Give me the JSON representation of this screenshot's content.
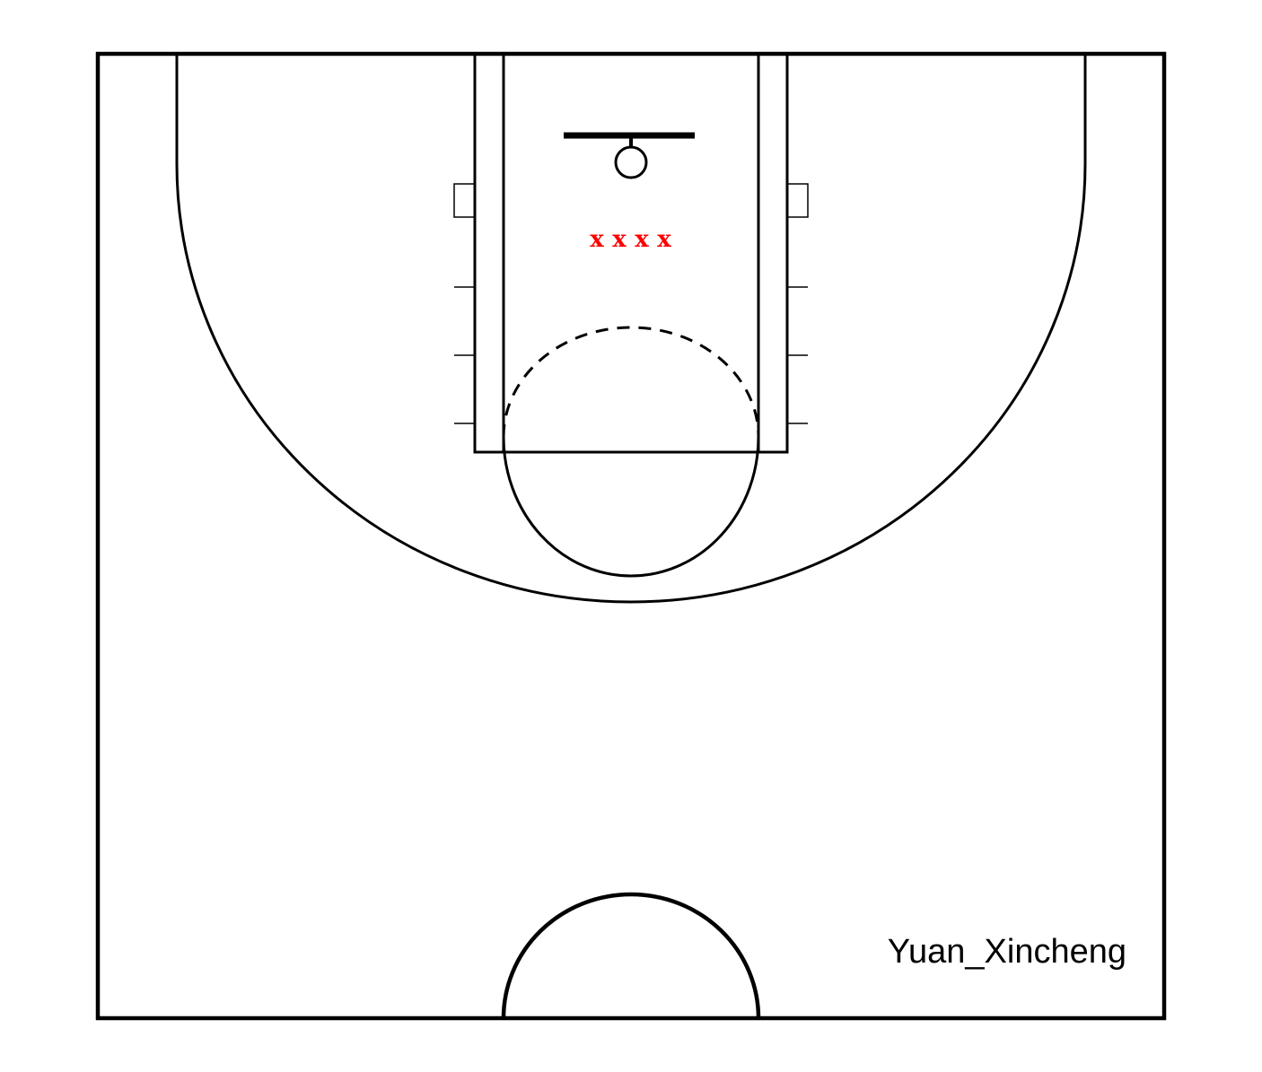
{
  "author": "Yuan_Xincheng",
  "players": {
    "marker": "x",
    "count": 4,
    "color": "#ff0000"
  },
  "court": {
    "line_color": "#000000",
    "background": "#ffffff"
  }
}
